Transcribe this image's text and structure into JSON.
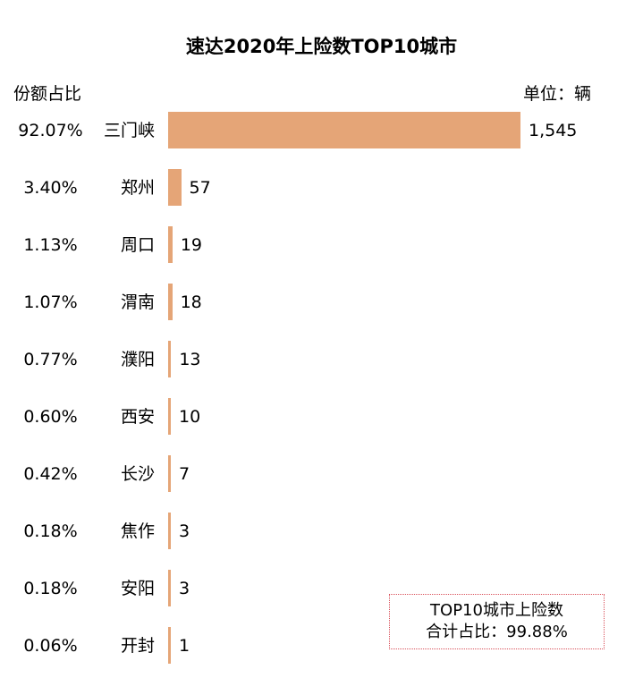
{
  "header": {
    "share_label": "份额占比",
    "unit_label": "单位：辆"
  },
  "note": {
    "line1": "TOP10城市上险数",
    "line2": "合计占比：99.88%"
  },
  "colors": {
    "bar": "#e5a577",
    "note_border": "#d9505a"
  },
  "chart_data": {
    "type": "bar",
    "orientation": "horizontal",
    "title": "速达2020年上险数TOP10城市",
    "categories": [
      "三门峡",
      "郑州",
      "周口",
      "渭南",
      "濮阳",
      "西安",
      "长沙",
      "焦作",
      "安阳",
      "开封"
    ],
    "values": [
      1545,
      57,
      19,
      18,
      13,
      10,
      7,
      3,
      3,
      1
    ],
    "value_labels": [
      "1,545",
      "57",
      "19",
      "18",
      "13",
      "10",
      "7",
      "3",
      "3",
      "1"
    ],
    "shares": [
      "92.07%",
      "3.40%",
      "1.13%",
      "1.07%",
      "0.77%",
      "0.60%",
      "0.42%",
      "0.18%",
      "0.18%",
      "0.06%"
    ],
    "xlim": [
      0,
      1545
    ],
    "grid": false,
    "legend": "none"
  }
}
